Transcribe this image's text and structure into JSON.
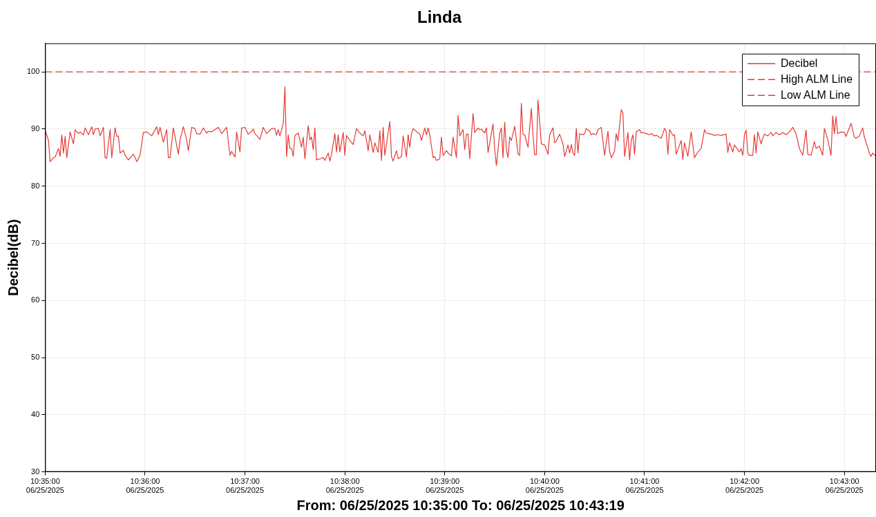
{
  "chart_data": {
    "type": "line",
    "title": "Linda",
    "xlabel": "From: 06/25/2025 10:35:00 To: 06/25/2025 10:43:19",
    "ylabel": "Decibel(dB)",
    "xlim": [
      "2025-06-25T10:35:00",
      "2025-06-25T10:43:19"
    ],
    "xticks": [
      {
        "value": "2025-06-25T10:35",
        "label": "10:35:00\n06/25/2025"
      },
      {
        "value": "2025-06-25T10:36",
        "label": "10:36:00\n06/25/2025"
      },
      {
        "value": "2025-06-25T10:37",
        "label": "10:37:00\n06/25/2025"
      },
      {
        "value": "2025-06-25T10:38",
        "label": "10:38:00\n06/25/2025"
      },
      {
        "value": "2025-06-25T10:39",
        "label": "10:39:00\n06/25/2025"
      },
      {
        "value": "2025-06-25T10:40",
        "label": "10:40:00\n06/25/2025"
      },
      {
        "value": "2025-06-25T10:41",
        "label": "10:41:00\n06/25/2025"
      },
      {
        "value": "2025-06-25T10:42",
        "label": "10:42:00\n06/25/2025"
      },
      {
        "value": "2025-06-25T10:43",
        "label": "10:43:00\n06/25/2025"
      }
    ],
    "ylim": [
      30,
      105
    ],
    "yticks": [
      30,
      40,
      50,
      60,
      70,
      80,
      90,
      100
    ],
    "grid": true,
    "legend": "top right",
    "series": [
      {
        "name": "Decibel",
        "color": "#e53935",
        "line_style": "solid",
        "x": [
          "2025-06-25T10:35:00",
          "2025-06-25T10:35:02",
          "2025-06-25T10:35:03",
          "2025-06-25T10:35:05",
          "2025-06-25T10:35:06",
          "2025-06-25T10:35:08",
          "2025-06-25T10:35:09",
          "2025-06-25T10:35:10",
          "2025-06-25T10:35:11",
          "2025-06-25T10:35:12",
          "2025-06-25T10:35:13",
          "2025-06-25T10:35:15",
          "2025-06-25T10:35:17",
          "2025-06-25T10:35:18",
          "2025-06-25T10:35:20",
          "2025-06-25T10:35:21",
          "2025-06-25T10:35:23",
          "2025-06-25T10:35:24",
          "2025-06-25T10:35:26",
          "2025-06-25T10:35:28",
          "2025-06-25T10:35:29",
          "2025-06-25T10:35:30",
          "2025-06-25T10:35:32",
          "2025-06-25T10:35:33",
          "2025-06-25T10:35:35",
          "2025-06-25T10:35:36",
          "2025-06-25T10:35:37",
          "2025-06-25T10:35:39",
          "2025-06-25T10:35:40",
          "2025-06-25T10:35:42",
          "2025-06-25T10:35:43",
          "2025-06-25T10:35:44",
          "2025-06-25T10:35:45",
          "2025-06-25T10:35:47",
          "2025-06-25T10:35:48",
          "2025-06-25T10:35:50",
          "2025-06-25T10:35:53",
          "2025-06-25T10:35:54",
          "2025-06-25T10:35:55",
          "2025-06-25T10:35:57",
          "2025-06-25T10:35:59",
          "2025-06-25T10:36:01",
          "2025-06-25T10:36:04",
          "2025-06-25T10:36:07",
          "2025-06-25T10:36:08",
          "2025-06-25T10:36:09",
          "2025-06-25T10:36:11",
          "2025-06-25T10:36:13",
          "2025-06-25T10:36:14",
          "2025-06-25T10:36:15",
          "2025-06-25T10:36:17",
          "2025-06-25T10:36:20",
          "2025-06-25T10:36:21",
          "2025-06-25T10:36:23",
          "2025-06-25T10:36:25",
          "2025-06-25T10:36:26",
          "2025-06-25T10:36:28",
          "2025-06-25T10:36:30",
          "2025-06-25T10:36:31",
          "2025-06-25T10:36:33",
          "2025-06-25T10:36:35",
          "2025-06-25T10:36:37",
          "2025-06-25T10:36:38",
          "2025-06-25T10:36:40",
          "2025-06-25T10:36:44",
          "2025-06-25T10:36:46",
          "2025-06-25T10:36:49",
          "2025-06-25T10:36:51",
          "2025-06-25T10:36:52",
          "2025-06-25T10:36:54",
          "2025-06-25T10:36:55",
          "2025-06-25T10:36:57",
          "2025-06-25T10:36:58",
          "2025-06-25T10:37:00",
          "2025-06-25T10:37:02",
          "2025-06-25T10:37:04",
          "2025-06-25T10:37:05",
          "2025-06-25T10:37:06",
          "2025-06-25T10:37:09",
          "2025-06-25T10:37:11",
          "2025-06-25T10:37:13",
          "2025-06-25T10:37:16",
          "2025-06-25T10:37:18",
          "2025-06-25T10:37:19",
          "2025-06-25T10:37:20",
          "2025-06-25T10:37:21",
          "2025-06-25T10:37:23",
          "2025-06-25T10:37:24",
          "2025-06-25T10:37:25",
          "2025-06-25T10:37:26",
          "2025-06-25T10:37:27",
          "2025-06-25T10:37:28",
          "2025-06-25T10:37:29",
          "2025-06-25T10:37:30",
          "2025-06-25T10:37:32",
          "2025-06-25T10:37:34",
          "2025-06-25T10:37:35",
          "2025-06-25T10:37:36",
          "2025-06-25T10:37:38",
          "2025-06-25T10:37:39",
          "2025-06-25T10:37:40",
          "2025-06-25T10:37:41",
          "2025-06-25T10:37:42",
          "2025-06-25T10:37:43",
          "2025-06-25T10:37:45",
          "2025-06-25T10:37:47",
          "2025-06-25T10:37:48",
          "2025-06-25T10:37:50",
          "2025-06-25T10:37:51",
          "2025-06-25T10:37:52",
          "2025-06-25T10:37:54",
          "2025-06-25T10:37:55",
          "2025-06-25T10:37:56",
          "2025-06-25T10:37:57",
          "2025-06-25T10:37:59",
          "2025-06-25T10:38:00",
          "2025-06-25T10:38:01",
          "2025-06-25T10:38:03",
          "2025-06-25T10:38:05",
          "2025-06-25T10:38:07",
          "2025-06-25T10:38:09",
          "2025-06-25T10:38:11",
          "2025-06-25T10:38:12",
          "2025-06-25T10:38:14",
          "2025-06-25T10:38:15",
          "2025-06-25T10:38:17",
          "2025-06-25T10:38:18",
          "2025-06-25T10:38:20",
          "2025-06-25T10:38:21",
          "2025-06-25T10:38:22",
          "2025-06-25T10:38:23",
          "2025-06-25T10:38:24",
          "2025-06-25T10:38:27",
          "2025-06-25T10:38:28",
          "2025-06-25T10:38:29",
          "2025-06-25T10:38:31",
          "2025-06-25T10:38:32",
          "2025-06-25T10:38:34",
          "2025-06-25T10:38:35",
          "2025-06-25T10:38:37",
          "2025-06-25T10:38:38",
          "2025-06-25T10:38:39",
          "2025-06-25T10:38:40",
          "2025-06-25T10:38:41",
          "2025-06-25T10:38:44",
          "2025-06-25T10:38:45",
          "2025-06-25T10:38:46",
          "2025-06-25T10:38:48",
          "2025-06-25T10:38:49",
          "2025-06-25T10:38:50",
          "2025-06-25T10:38:51",
          "2025-06-25T10:38:53",
          "2025-06-25T10:38:54",
          "2025-06-25T10:38:55",
          "2025-06-25T10:38:57",
          "2025-06-25T10:38:58",
          "2025-06-25T10:38:59",
          "2025-06-25T10:39:01",
          "2025-06-25T10:39:02",
          "2025-06-25T10:39:04",
          "2025-06-25T10:39:05",
          "2025-06-25T10:39:07",
          "2025-06-25T10:39:08",
          "2025-06-25T10:39:09",
          "2025-06-25T10:39:11",
          "2025-06-25T10:39:12",
          "2025-06-25T10:39:13",
          "2025-06-25T10:39:14",
          "2025-06-25T10:39:15",
          "2025-06-25T10:39:17",
          "2025-06-25T10:39:18",
          "2025-06-25T10:39:20",
          "2025-06-25T10:39:21",
          "2025-06-25T10:39:22",
          "2025-06-25T10:39:24",
          "2025-06-25T10:39:25",
          "2025-06-25T10:39:26",
          "2025-06-25T10:39:29",
          "2025-06-25T10:39:30",
          "2025-06-25T10:39:31",
          "2025-06-25T10:39:33",
          "2025-06-25T10:39:34",
          "2025-06-25T10:39:35",
          "2025-06-25T10:39:36",
          "2025-06-25T10:39:37",
          "2025-06-25T10:39:38",
          "2025-06-25T10:39:39",
          "2025-06-25T10:39:40",
          "2025-06-25T10:39:42",
          "2025-06-25T10:39:43",
          "2025-06-25T10:39:44",
          "2025-06-25T10:39:45",
          "2025-06-25T10:39:46",
          "2025-06-25T10:39:47",
          "2025-06-25T10:39:48",
          "2025-06-25T10:39:50",
          "2025-06-25T10:39:52",
          "2025-06-25T10:39:53",
          "2025-06-25T10:39:54",
          "2025-06-25T10:39:55",
          "2025-06-25T10:39:56",
          "2025-06-25T10:39:58",
          "2025-06-25T10:40:00",
          "2025-06-25T10:40:01",
          "2025-06-25T10:40:02",
          "2025-06-25T10:40:03",
          "2025-06-25T10:40:05",
          "2025-06-25T10:40:06",
          "2025-06-25T10:40:07",
          "2025-06-25T10:40:09",
          "2025-06-25T10:40:11",
          "2025-06-25T10:40:12",
          "2025-06-25T10:40:14",
          "2025-06-25T10:40:15",
          "2025-06-25T10:40:16",
          "2025-06-25T10:40:17",
          "2025-06-25T10:40:18",
          "2025-06-25T10:40:19",
          "2025-06-25T10:40:20",
          "2025-06-25T10:40:21",
          "2025-06-25T10:40:23",
          "2025-06-25T10:40:24",
          "2025-06-25T10:40:25",
          "2025-06-25T10:40:27",
          "2025-06-25T10:40:28",
          "2025-06-25T10:40:29",
          "2025-06-25T10:40:31",
          "2025-06-25T10:40:32",
          "2025-06-25T10:40:34",
          "2025-06-25T10:40:36",
          "2025-06-25T10:40:38",
          "2025-06-25T10:40:39",
          "2025-06-25T10:40:40",
          "2025-06-25T10:40:42",
          "2025-06-25T10:40:43",
          "2025-06-25T10:40:44",
          "2025-06-25T10:40:46",
          "2025-06-25T10:40:47",
          "2025-06-25T10:40:48",
          "2025-06-25T10:40:50",
          "2025-06-25T10:40:51",
          "2025-06-25T10:40:52",
          "2025-06-25T10:40:53",
          "2025-06-25T10:40:54",
          "2025-06-25T10:40:55",
          "2025-06-25T10:40:57",
          "2025-06-25T10:40:58",
          "2025-06-25T10:40:59",
          "2025-06-25T10:41:01",
          "2025-06-25T10:41:03",
          "2025-06-25T10:41:04",
          "2025-06-25T10:41:06",
          "2025-06-25T10:41:07",
          "2025-06-25T10:41:10",
          "2025-06-25T10:41:12",
          "2025-06-25T10:41:13",
          "2025-06-25T10:41:14",
          "2025-06-25T10:41:15",
          "2025-06-25T10:41:17",
          "2025-06-25T10:41:18",
          "2025-06-25T10:41:19",
          "2025-06-25T10:41:21",
          "2025-06-25T10:41:22",
          "2025-06-25T10:41:23",
          "2025-06-25T10:41:24",
          "2025-06-25T10:41:26",
          "2025-06-25T10:41:28",
          "2025-06-25T10:41:30",
          "2025-06-25T10:41:32",
          "2025-06-25T10:41:34",
          "2025-06-25T10:41:36",
          "2025-06-25T10:41:37",
          "2025-06-25T10:41:39",
          "2025-06-25T10:41:42",
          "2025-06-25T10:41:44",
          "2025-06-25T10:41:46",
          "2025-06-25T10:41:49",
          "2025-06-25T10:41:50",
          "2025-06-25T10:41:51",
          "2025-06-25T10:41:53",
          "2025-06-25T10:41:54",
          "2025-06-25T10:41:57",
          "2025-06-25T10:41:58",
          "2025-06-25T10:41:59",
          "2025-06-25T10:42:00",
          "2025-06-25T10:42:01",
          "2025-06-25T10:42:02",
          "2025-06-25T10:42:03",
          "2025-06-25T10:42:05",
          "2025-06-25T10:42:06",
          "2025-06-25T10:42:07",
          "2025-06-25T10:42:08",
          "2025-06-25T10:42:10",
          "2025-06-25T10:42:11",
          "2025-06-25T10:42:12",
          "2025-06-25T10:42:14",
          "2025-06-25T10:42:16",
          "2025-06-25T10:42:17",
          "2025-06-25T10:42:19",
          "2025-06-25T10:42:21",
          "2025-06-25T10:42:23",
          "2025-06-25T10:42:25",
          "2025-06-25T10:42:27",
          "2025-06-25T10:42:29",
          "2025-06-25T10:42:31",
          "2025-06-25T10:42:33",
          "2025-06-25T10:42:35",
          "2025-06-25T10:42:37",
          "2025-06-25T10:42:38",
          "2025-06-25T10:42:40",
          "2025-06-25T10:42:42",
          "2025-06-25T10:42:43",
          "2025-06-25T10:42:45",
          "2025-06-25T10:42:47",
          "2025-06-25T10:42:48",
          "2025-06-25T10:42:50",
          "2025-06-25T10:42:52",
          "2025-06-25T10:42:53",
          "2025-06-25T10:42:54",
          "2025-06-25T10:42:55",
          "2025-06-25T10:42:56",
          "2025-06-25T10:42:58",
          "2025-06-25T10:43:00",
          "2025-06-25T10:43:01",
          "2025-06-25T10:43:04",
          "2025-06-25T10:43:06",
          "2025-06-25T10:43:07",
          "2025-06-25T10:43:09",
          "2025-06-25T10:43:11",
          "2025-06-25T10:43:12",
          "2025-06-25T10:43:14",
          "2025-06-25T10:43:15",
          "2025-06-25T10:43:16",
          "2025-06-25T10:43:17",
          "2025-06-25T10:43:19"
        ],
        "values": [
          89.8,
          88.0,
          84.3,
          85.0,
          85.1,
          86.6,
          85.2,
          89.0,
          85.8,
          88.7,
          85.0,
          89.5,
          87.4,
          89.9,
          89.2,
          89.5,
          89.0,
          90.2,
          89.0,
          90.4,
          89.0,
          90.0,
          90.1,
          88.8,
          90.3,
          85.0,
          84.9,
          89.9,
          85.0,
          90.2,
          88.7,
          88.8,
          85.8,
          86.3,
          85.4,
          84.6,
          85.6,
          85.0,
          84.3,
          85.4,
          89.4,
          89.5,
          88.8,
          90.4,
          89.0,
          90.3,
          87.7,
          89.9,
          85.0,
          85.0,
          90.2,
          85.6,
          88.1,
          90.4,
          88.1,
          86.2,
          90.3,
          90.1,
          89.2,
          89.1,
          90.2,
          89.3,
          89.6,
          89.5,
          90.3,
          89.2,
          90.3,
          85.4,
          86.1,
          85.1,
          89.5,
          86.0,
          90.2,
          90.3,
          89.1,
          89.6,
          90.0,
          89.2,
          88.2,
          90.3,
          89.2,
          90.1,
          90.1,
          88.9,
          89.9,
          88.8,
          91.0,
          97.4,
          85.2,
          89.0,
          86.6,
          86.6,
          85.2,
          88.9,
          89.3,
          86.8,
          88.6,
          84.8,
          90.6,
          88.1,
          88.6,
          86.4,
          90.2,
          84.6,
          84.8,
          85.0,
          84.5,
          85.8,
          84.4,
          85.6,
          89.2,
          86.0,
          89.0,
          86.0,
          89.4,
          85.4,
          88.9,
          88.0,
          87.3,
          90.1,
          89.3,
          88.8,
          89.7,
          86.2,
          89.0,
          85.9,
          87.6,
          85.9,
          89.7,
          84.5,
          90.3,
          85.4,
          91.3,
          85.2,
          84.4,
          86.2,
          84.8,
          85.2,
          88.8,
          85.1,
          89.0,
          86.8,
          89.1,
          90.1,
          89.3,
          89.2,
          88.0,
          90.2,
          89.0,
          90.2,
          89.0,
          85.0,
          85.2,
          84.5,
          84.8,
          88.6,
          85.4,
          86.2,
          85.8,
          85.3,
          88.6,
          85.0,
          92.4,
          88.8,
          89.9,
          86.4,
          89.1,
          89.1,
          84.8,
          92.7,
          89.4,
          90.2,
          89.9,
          90.0,
          89.3,
          90.2,
          85.9,
          90.9,
          86.4,
          83.6,
          89.2,
          90.2,
          85.0,
          91.2,
          86.4,
          85.0,
          88.6,
          88.0,
          90.5,
          88.2,
          85.6,
          85.4,
          94.5,
          89.0,
          89.0,
          86.8,
          93.6,
          89.0,
          85.5,
          85.5,
          95.1,
          87.4,
          87.2,
          86.4,
          85.6,
          89.0,
          90.2,
          87.6,
          87.9,
          89.1,
          87.4,
          85.2,
          87.2,
          85.8,
          87.3,
          85.8,
          85.4,
          90.1,
          85.8,
          89.2,
          89.0,
          89.2,
          90.1,
          89.6,
          89.0,
          89.2,
          89.0,
          89.9,
          90.3,
          85.4,
          89.6,
          86.1,
          85.0,
          86.1,
          89.2,
          87.9,
          93.4,
          92.8,
          85.2,
          89.4,
          84.6,
          88.0,
          89.0,
          85.6,
          89.5,
          89.9,
          89.3,
          89.4,
          89.2,
          89.0,
          89.2,
          88.8,
          88.9,
          88.4,
          90.1,
          89.6,
          85.6,
          89.9,
          88.9,
          89.0,
          85.6,
          87.2,
          88.0,
          84.7,
          87.6,
          85.2,
          89.5,
          85.0,
          86.0,
          86.6,
          89.9,
          89.3,
          89.2,
          88.9,
          89.0,
          88.9,
          89.1,
          85.9,
          87.6,
          86.0,
          87.2,
          86.0,
          86.6,
          85.4,
          89.0,
          89.8,
          85.8,
          85.4,
          85.4,
          89.0,
          85.8,
          89.5,
          87.4,
          88.4,
          89.1,
          88.8,
          89.4,
          88.8,
          89.4,
          89.0,
          89.4,
          89.0,
          89.5,
          90.3,
          89.2,
          86.6,
          85.4,
          89.8,
          85.6,
          85.4,
          87.8,
          86.6,
          87.0,
          85.4,
          90.1,
          88.2,
          85.4,
          92.3,
          89.2,
          92.2,
          89.2,
          89.5,
          89.4,
          88.7,
          91.0,
          88.6,
          88.4,
          88.8,
          90.2,
          88.6,
          86.8,
          85.8,
          85.2,
          85.8,
          85.2
        ]
      },
      {
        "name": "High ALM Line",
        "color": "#e53935",
        "line_style": "dashed",
        "x": [
          "2025-06-25T10:35:00",
          "2025-06-25T10:43:19"
        ],
        "values": [
          100,
          100
        ]
      },
      {
        "name": "Low ALM Line",
        "color": "#e53935",
        "line_style": "dashed",
        "values": [
          null,
          null
        ]
      }
    ]
  }
}
